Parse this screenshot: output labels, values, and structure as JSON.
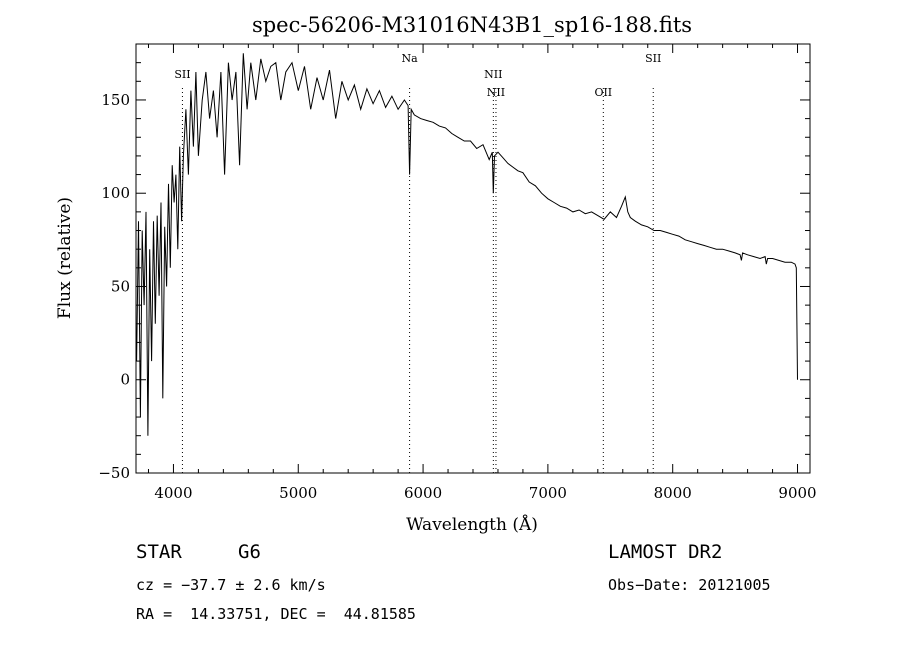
{
  "chart_data": {
    "type": "line",
    "title": "spec-56206-M31016N43B1_sp16-188.fits",
    "xlabel": "Wavelength (Å)",
    "ylabel": "Flux (relative)",
    "xlim": [
      3700,
      9100
    ],
    "ylim": [
      -50,
      180
    ],
    "x_ticks": [
      {
        "value": 4000,
        "label": "4000"
      },
      {
        "value": 5000,
        "label": "5000"
      },
      {
        "value": 6000,
        "label": "6000"
      },
      {
        "value": 7000,
        "label": "7000"
      },
      {
        "value": 8000,
        "label": "8000"
      },
      {
        "value": 9000,
        "label": "9000"
      }
    ],
    "y_ticks": [
      {
        "value": -50,
        "label": "−50"
      },
      {
        "value": 0,
        "label": "0"
      },
      {
        "value": 50,
        "label": "50"
      },
      {
        "value": 100,
        "label": "100"
      },
      {
        "value": 150,
        "label": "150"
      }
    ],
    "grid": false,
    "series": [
      {
        "color": "#000000",
        "x": [
          3705,
          3720,
          3735,
          3750,
          3765,
          3780,
          3795,
          3810,
          3825,
          3840,
          3855,
          3870,
          3885,
          3900,
          3915,
          3930,
          3945,
          3960,
          3975,
          3990,
          4005,
          4020,
          4035,
          4050,
          4065,
          4080,
          4100,
          4120,
          4140,
          4160,
          4180,
          4200,
          4230,
          4260,
          4290,
          4320,
          4350,
          4380,
          4410,
          4440,
          4470,
          4500,
          4530,
          4560,
          4590,
          4620,
          4660,
          4700,
          4740,
          4780,
          4820,
          4860,
          4900,
          4950,
          5000,
          5050,
          5100,
          5150,
          5200,
          5250,
          5300,
          5350,
          5400,
          5450,
          5500,
          5550,
          5600,
          5650,
          5700,
          5750,
          5800,
          5850,
          5880,
          5892,
          5905,
          5930,
          5980,
          6030,
          6080,
          6130,
          6180,
          6230,
          6280,
          6330,
          6380,
          6430,
          6480,
          6530,
          6555,
          6563,
          6572,
          6600,
          6640,
          6680,
          6720,
          6760,
          6800,
          6850,
          6900,
          6950,
          7000,
          7050,
          7100,
          7150,
          7200,
          7250,
          7300,
          7350,
          7400,
          7450,
          7500,
          7550,
          7590,
          7620,
          7640,
          7660,
          7700,
          7750,
          7800,
          7850,
          7900,
          7950,
          8000,
          8050,
          8100,
          8150,
          8200,
          8250,
          8300,
          8350,
          8400,
          8450,
          8500,
          8540,
          8550,
          8560,
          8600,
          8650,
          8700,
          8740,
          8750,
          8760,
          8800,
          8850,
          8900,
          8950,
          8980,
          8990,
          9000
        ],
        "y": [
          10,
          85,
          -20,
          80,
          40,
          90,
          -30,
          70,
          10,
          85,
          30,
          88,
          45,
          95,
          -10,
          82,
          50,
          105,
          60,
          115,
          95,
          110,
          70,
          125,
          85,
          120,
          145,
          110,
          155,
          125,
          165,
          120,
          150,
          165,
          140,
          155,
          130,
          165,
          110,
          170,
          150,
          165,
          115,
          175,
          145,
          170,
          150,
          172,
          160,
          168,
          170,
          150,
          165,
          170,
          155,
          168,
          145,
          162,
          150,
          166,
          140,
          160,
          150,
          158,
          145,
          156,
          148,
          155,
          146,
          152,
          145,
          150,
          147,
          110,
          145,
          142,
          140,
          139,
          138,
          136,
          135,
          132,
          130,
          128,
          128,
          124,
          126,
          118,
          122,
          100,
          120,
          122,
          119,
          116,
          114,
          112,
          111,
          106,
          104,
          100,
          97,
          95,
          93,
          92,
          90,
          91,
          89,
          90,
          88,
          86,
          90,
          87,
          93,
          98,
          90,
          87,
          85,
          83,
          82,
          80,
          80,
          79,
          78,
          77,
          75,
          74,
          73,
          72,
          71,
          70,
          70,
          69,
          68,
          67,
          64,
          68,
          67,
          66,
          65,
          66,
          62,
          65,
          65,
          64,
          63,
          63,
          62,
          60,
          0
        ]
      }
    ],
    "lines": [
      {
        "x": 4072,
        "label": "SII"
      },
      {
        "x": 5892,
        "label": "Na"
      },
      {
        "x": 6563,
        "label": "NII"
      },
      {
        "x": 6584,
        "label": "NII"
      },
      {
        "x": 7444,
        "label": "OII"
      },
      {
        "x": 7844,
        "label": "SII"
      }
    ]
  },
  "info": {
    "object_type": "STAR",
    "subclass": "G6",
    "survey": "LAMOST DR2",
    "cz": "cz = −37.7 ± 2.6 km/s",
    "obs_date": "Obs−Date: 20121005",
    "coords": "RA =  14.33751, DEC =  44.81585"
  }
}
